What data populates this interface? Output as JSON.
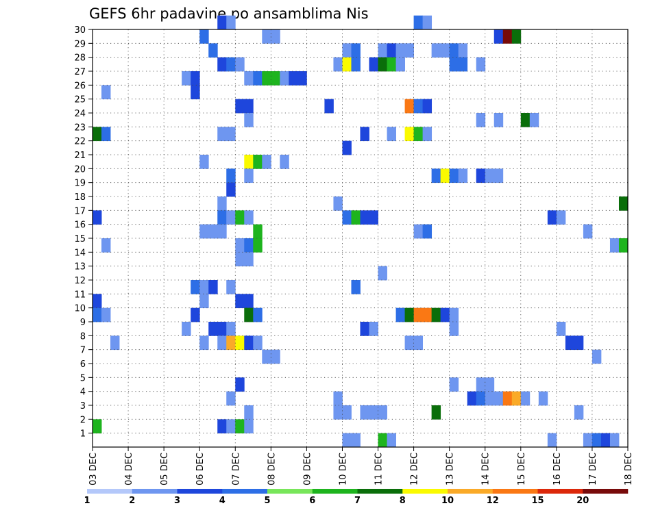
{
  "chart_data": {
    "type": "heatmap",
    "title": "GEFS 6hr padavine po ansamblima Nis",
    "x_tick_labels": [
      "03 DEC",
      "04 DEC",
      "05 DEC",
      "06 DEC",
      "07 DEC",
      "08 DEC",
      "09 DEC",
      "10 DEC",
      "11 DEC",
      "12 DEC",
      "13 DEC",
      "14 DEC",
      "15 DEC",
      "16 DEC",
      "17 DEC",
      "18 DEC"
    ],
    "x_range_days": [
      0,
      15
    ],
    "time_step_hours": 6,
    "y_tick_labels": [
      "1",
      "2",
      "3",
      "4",
      "5",
      "6",
      "7",
      "8",
      "9",
      "10",
      "11",
      "12",
      "13",
      "14",
      "15",
      "16",
      "17",
      "18",
      "19",
      "20",
      "21",
      "22",
      "23",
      "24",
      "25",
      "26",
      "27",
      "28",
      "29",
      "30"
    ],
    "y_range_members": [
      0,
      30
    ],
    "grid": "dotted",
    "legend": {
      "position": "bottom",
      "thresholds": [
        "1",
        "2",
        "3",
        "4",
        "5",
        "6",
        "7",
        "8",
        "10",
        "12",
        "15",
        "20"
      ],
      "colors": [
        "#b4c8fa",
        "#6e96f0",
        "#1e46dc",
        "#2d6ee6",
        "#78e65a",
        "#1eb41e",
        "#0a6e0a",
        "#fafa00",
        "#faaa28",
        "#fa7814",
        "#dc280a",
        "#780a0a"
      ]
    },
    "cells": [
      [
        30,
        14,
        2
      ],
      [
        30,
        15,
        1
      ],
      [
        30,
        36,
        3
      ],
      [
        30,
        37,
        1
      ],
      [
        29,
        12,
        3
      ],
      [
        29,
        19,
        1
      ],
      [
        29,
        20,
        1
      ],
      [
        29,
        45,
        2
      ],
      [
        29,
        46,
        11
      ],
      [
        29,
        47,
        6
      ],
      [
        28,
        13,
        3
      ],
      [
        28,
        28,
        1
      ],
      [
        28,
        29,
        3
      ],
      [
        28,
        32,
        1
      ],
      [
        28,
        33,
        2
      ],
      [
        28,
        34,
        1
      ],
      [
        28,
        35,
        1
      ],
      [
        28,
        38,
        1
      ],
      [
        28,
        39,
        1
      ],
      [
        28,
        40,
        3
      ],
      [
        28,
        41,
        1
      ],
      [
        27,
        14,
        2
      ],
      [
        27,
        15,
        3
      ],
      [
        27,
        16,
        1
      ],
      [
        27,
        27,
        1
      ],
      [
        27,
        28,
        7
      ],
      [
        27,
        29,
        3
      ],
      [
        27,
        31,
        2
      ],
      [
        27,
        32,
        6
      ],
      [
        27,
        33,
        5
      ],
      [
        27,
        34,
        1
      ],
      [
        27,
        40,
        3
      ],
      [
        27,
        41,
        3
      ],
      [
        27,
        43,
        1
      ],
      [
        26,
        10,
        1
      ],
      [
        26,
        11,
        2
      ],
      [
        26,
        17,
        1
      ],
      [
        26,
        18,
        3
      ],
      [
        26,
        19,
        5
      ],
      [
        26,
        20,
        5
      ],
      [
        26,
        21,
        1
      ],
      [
        26,
        22,
        2
      ],
      [
        26,
        23,
        2
      ],
      [
        25,
        1,
        1
      ],
      [
        25,
        11,
        2
      ],
      [
        24,
        16,
        2
      ],
      [
        24,
        17,
        2
      ],
      [
        24,
        26,
        2
      ],
      [
        24,
        35,
        9
      ],
      [
        24,
        36,
        3
      ],
      [
        24,
        37,
        2
      ],
      [
        23,
        17,
        1
      ],
      [
        23,
        43,
        1
      ],
      [
        23,
        45,
        1
      ],
      [
        23,
        48,
        6
      ],
      [
        23,
        49,
        1
      ],
      [
        22,
        0,
        6
      ],
      [
        22,
        1,
        3
      ],
      [
        22,
        14,
        1
      ],
      [
        22,
        15,
        1
      ],
      [
        22,
        30,
        2
      ],
      [
        22,
        33,
        1
      ],
      [
        22,
        35,
        7
      ],
      [
        22,
        36,
        5
      ],
      [
        22,
        37,
        1
      ],
      [
        21,
        28,
        2
      ],
      [
        20,
        12,
        1
      ],
      [
        20,
        17,
        7
      ],
      [
        20,
        18,
        5
      ],
      [
        20,
        19,
        1
      ],
      [
        20,
        21,
        1
      ],
      [
        19,
        15,
        3
      ],
      [
        19,
        17,
        1
      ],
      [
        19,
        38,
        3
      ],
      [
        19,
        39,
        7
      ],
      [
        19,
        40,
        3
      ],
      [
        19,
        41,
        1
      ],
      [
        19,
        43,
        2
      ],
      [
        19,
        44,
        1
      ],
      [
        19,
        45,
        1
      ],
      [
        18,
        15,
        2
      ],
      [
        17,
        14,
        1
      ],
      [
        17,
        27,
        1
      ],
      [
        17,
        59,
        6
      ],
      [
        16,
        0,
        2
      ],
      [
        16,
        14,
        3
      ],
      [
        16,
        15,
        1
      ],
      [
        16,
        16,
        5
      ],
      [
        16,
        17,
        1
      ],
      [
        16,
        28,
        3
      ],
      [
        16,
        29,
        5
      ],
      [
        16,
        30,
        2
      ],
      [
        16,
        31,
        2
      ],
      [
        16,
        51,
        2
      ],
      [
        16,
        52,
        1
      ],
      [
        15,
        12,
        1
      ],
      [
        15,
        13,
        1
      ],
      [
        15,
        14,
        1
      ],
      [
        15,
        18,
        5
      ],
      [
        15,
        36,
        1
      ],
      [
        15,
        37,
        3
      ],
      [
        15,
        55,
        1
      ],
      [
        14,
        1,
        1
      ],
      [
        14,
        16,
        1
      ],
      [
        14,
        17,
        3
      ],
      [
        14,
        18,
        5
      ],
      [
        14,
        58,
        1
      ],
      [
        14,
        59,
        5
      ],
      [
        13,
        16,
        1
      ],
      [
        13,
        17,
        1
      ],
      [
        12,
        32,
        1
      ],
      [
        11,
        11,
        3
      ],
      [
        11,
        12,
        1
      ],
      [
        11,
        13,
        2
      ],
      [
        11,
        15,
        1
      ],
      [
        11,
        29,
        3
      ],
      [
        10,
        0,
        2
      ],
      [
        10,
        12,
        1
      ],
      [
        10,
        16,
        2
      ],
      [
        10,
        17,
        2
      ],
      [
        9,
        0,
        3
      ],
      [
        9,
        1,
        1
      ],
      [
        9,
        11,
        2
      ],
      [
        9,
        17,
        6
      ],
      [
        9,
        18,
        3
      ],
      [
        9,
        34,
        3
      ],
      [
        9,
        35,
        6
      ],
      [
        9,
        36,
        9
      ],
      [
        9,
        37,
        9
      ],
      [
        9,
        38,
        6
      ],
      [
        9,
        39,
        2
      ],
      [
        9,
        40,
        1
      ],
      [
        8,
        10,
        1
      ],
      [
        8,
        13,
        2
      ],
      [
        8,
        14,
        2
      ],
      [
        8,
        15,
        1
      ],
      [
        8,
        30,
        2
      ],
      [
        8,
        31,
        1
      ],
      [
        8,
        40,
        1
      ],
      [
        8,
        52,
        1
      ],
      [
        7,
        2,
        1
      ],
      [
        7,
        12,
        1
      ],
      [
        7,
        14,
        1
      ],
      [
        7,
        15,
        8
      ],
      [
        7,
        16,
        7
      ],
      [
        7,
        17,
        2
      ],
      [
        7,
        18,
        1
      ],
      [
        7,
        35,
        1
      ],
      [
        7,
        36,
        1
      ],
      [
        7,
        53,
        2
      ],
      [
        7,
        54,
        2
      ],
      [
        6,
        19,
        1
      ],
      [
        6,
        20,
        1
      ],
      [
        6,
        56,
        1
      ],
      [
        4,
        16,
        2
      ],
      [
        4,
        40,
        1
      ],
      [
        4,
        43,
        1
      ],
      [
        4,
        44,
        1
      ],
      [
        3,
        15,
        1
      ],
      [
        3,
        27,
        1
      ],
      [
        3,
        42,
        2
      ],
      [
        3,
        43,
        3
      ],
      [
        3,
        44,
        1
      ],
      [
        3,
        45,
        1
      ],
      [
        3,
        46,
        9
      ],
      [
        3,
        47,
        8
      ],
      [
        3,
        48,
        1
      ],
      [
        3,
        50,
        1
      ],
      [
        2,
        17,
        1
      ],
      [
        2,
        27,
        1
      ],
      [
        2,
        28,
        1
      ],
      [
        2,
        30,
        1
      ],
      [
        2,
        31,
        1
      ],
      [
        2,
        32,
        1
      ],
      [
        2,
        38,
        6
      ],
      [
        2,
        54,
        1
      ],
      [
        1,
        0,
        5
      ],
      [
        1,
        14,
        2
      ],
      [
        1,
        15,
        1
      ],
      [
        1,
        16,
        5
      ],
      [
        1,
        17,
        1
      ],
      [
        0,
        28,
        1
      ],
      [
        0,
        29,
        1
      ],
      [
        0,
        32,
        5
      ],
      [
        0,
        33,
        1
      ],
      [
        0,
        51,
        1
      ],
      [
        0,
        55,
        1
      ],
      [
        0,
        56,
        3
      ],
      [
        0,
        57,
        2
      ],
      [
        0,
        58,
        1
      ]
    ]
  }
}
